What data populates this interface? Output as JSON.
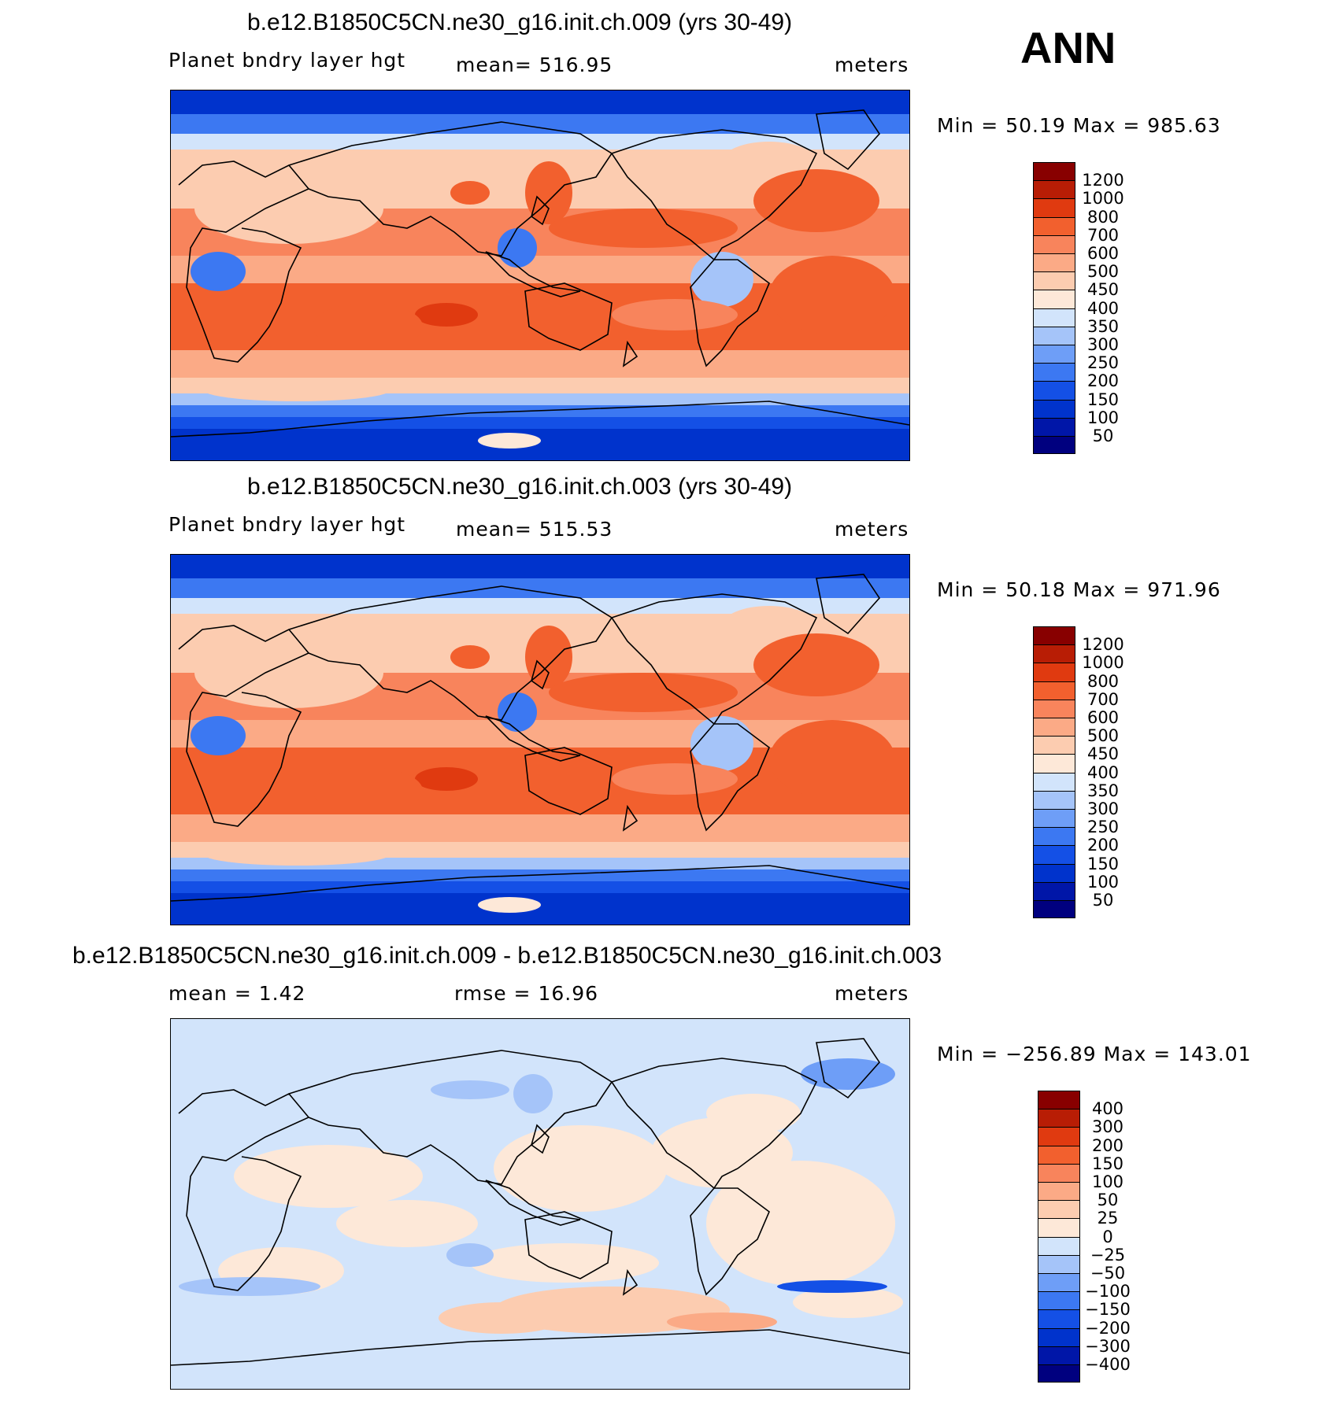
{
  "season": "ANN",
  "panels": [
    {
      "title": "b.e12.B1850C5CN.ne30_g16.init.ch.009 (yrs 30-49)",
      "left": "Planet bndry layer hgt",
      "center": "mean=  516.95",
      "right": "meters",
      "minmax": "Min =   50.19 Max = 985.63",
      "levels": [
        "1200",
        "1000",
        "800",
        "700",
        "600",
        "500",
        "450",
        "400",
        "350",
        "300",
        "250",
        "200",
        "150",
        "100",
        "50"
      ]
    },
    {
      "title": "b.e12.B1850C5CN.ne30_g16.init.ch.003 (yrs 30-49)",
      "left": "Planet bndry layer hgt",
      "center": "mean=  515.53",
      "right": "meters",
      "minmax": "Min =   50.18 Max = 971.96",
      "levels": [
        "1200",
        "1000",
        "800",
        "700",
        "600",
        "500",
        "450",
        "400",
        "350",
        "300",
        "250",
        "200",
        "150",
        "100",
        "50"
      ]
    },
    {
      "title": "b.e12.B1850C5CN.ne30_g16.init.ch.009 - b.e12.B1850C5CN.ne30_g16.init.ch.003",
      "left": "mean =     1.42",
      "center": "rmse =    16.96",
      "right": "meters",
      "minmax": "Min = −256.89 Max = 143.01",
      "levels": [
        "400",
        "300",
        "200",
        "150",
        "100",
        "50",
        "25",
        "0",
        "−25",
        "−50",
        "−100",
        "−150",
        "−200",
        "−300",
        "−400"
      ]
    }
  ],
  "chart_data": [
    {
      "type": "heatmap",
      "title": "b.e12.B1850C5CN.ne30_g16.init.ch.009 (yrs 30-49)",
      "variable": "Planet bndry layer hgt",
      "units": "meters",
      "mean": 516.95,
      "min": 50.19,
      "max": 985.63,
      "contour_levels": [
        50,
        100,
        150,
        200,
        250,
        300,
        350,
        400,
        450,
        500,
        600,
        700,
        800,
        1000,
        1200
      ],
      "colormap": [
        "#00007f",
        "#0016a8",
        "#0033cc",
        "#1450e6",
        "#3c78f2",
        "#6e9ef7",
        "#a5c4f9",
        "#d2e4fb",
        "#fde8d8",
        "#fcccb0",
        "#fbaa86",
        "#f8845c",
        "#f2602e",
        "#e03a10",
        "#b81d05",
        "#880000"
      ]
    },
    {
      "type": "heatmap",
      "title": "b.e12.B1850C5CN.ne30_g16.init.ch.003 (yrs 30-49)",
      "variable": "Planet bndry layer hgt",
      "units": "meters",
      "mean": 515.53,
      "min": 50.18,
      "max": 971.96,
      "contour_levels": [
        50,
        100,
        150,
        200,
        250,
        300,
        350,
        400,
        450,
        500,
        600,
        700,
        800,
        1000,
        1200
      ],
      "colormap": [
        "#00007f",
        "#0016a8",
        "#0033cc",
        "#1450e6",
        "#3c78f2",
        "#6e9ef7",
        "#a5c4f9",
        "#d2e4fb",
        "#fde8d8",
        "#fcccb0",
        "#fbaa86",
        "#f8845c",
        "#f2602e",
        "#e03a10",
        "#b81d05",
        "#880000"
      ]
    },
    {
      "type": "heatmap",
      "title": "b.e12.B1850C5CN.ne30_g16.init.ch.009 - b.e12.B1850C5CN.ne30_g16.init.ch.003",
      "units": "meters",
      "mean": 1.42,
      "rmse": 16.96,
      "min": -256.89,
      "max": 143.01,
      "contour_levels": [
        -400,
        -300,
        -200,
        -150,
        -100,
        -50,
        -25,
        0,
        25,
        50,
        100,
        150,
        200,
        300,
        400
      ],
      "colormap": [
        "#00007f",
        "#0016a8",
        "#0033cc",
        "#1450e6",
        "#3c78f2",
        "#6e9ef7",
        "#a5c4f9",
        "#d2e4fb",
        "#fde8d8",
        "#fcccb0",
        "#fbaa86",
        "#f8845c",
        "#f2602e",
        "#e03a10",
        "#b81d05",
        "#880000"
      ]
    }
  ]
}
